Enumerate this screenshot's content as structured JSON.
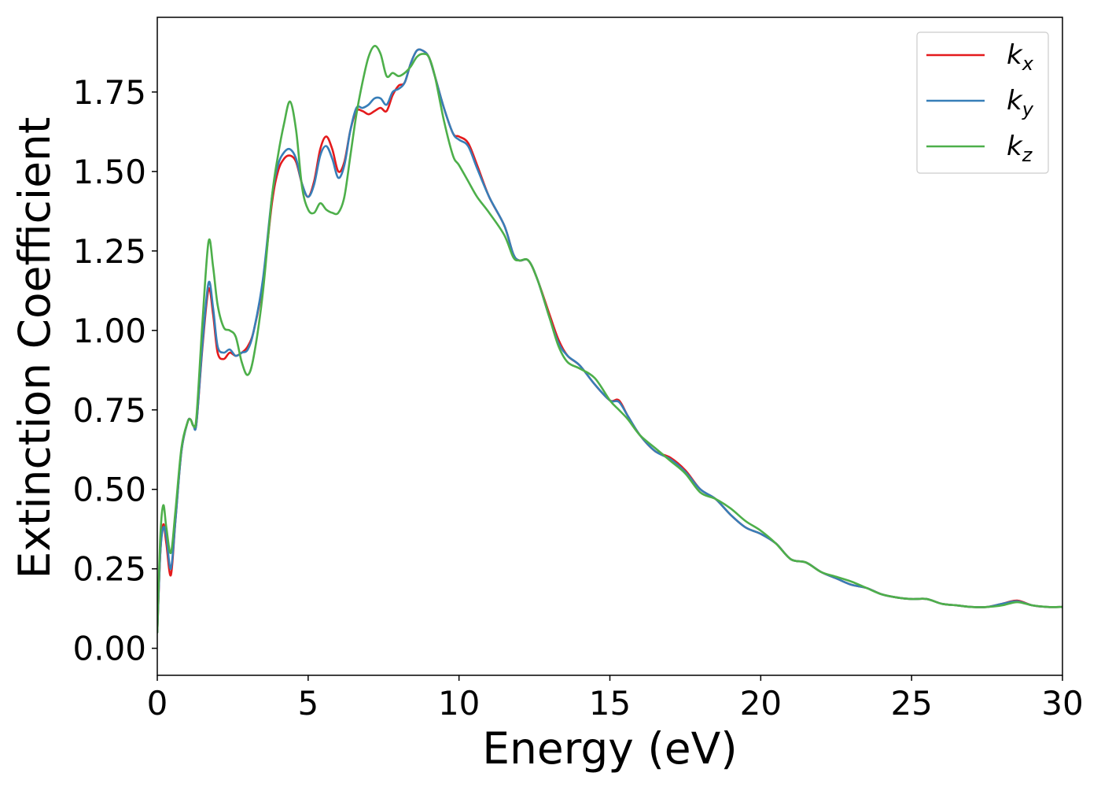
{
  "chart_data": {
    "type": "line",
    "xlabel": "Energy (eV)",
    "ylabel": "Extinction Coefficient",
    "xlim": [
      0,
      30
    ],
    "ylim": [
      -0.085,
      1.985
    ],
    "xticks": [
      0,
      5,
      10,
      15,
      20,
      25,
      30
    ],
    "xtick_labels": [
      "0",
      "5",
      "10",
      "15",
      "20",
      "25",
      "30"
    ],
    "yticks": [
      0.0,
      0.25,
      0.5,
      0.75,
      1.0,
      1.25,
      1.5,
      1.75
    ],
    "ytick_labels": [
      "0.00",
      "0.25",
      "0.50",
      "0.75",
      "1.00",
      "1.25",
      "1.50",
      "1.75"
    ],
    "grid": false,
    "legend_position": "top-right",
    "series": [
      {
        "name": "k_x",
        "label_base": "k",
        "label_sub": "x",
        "color": "#e41a1c",
        "points": [
          [
            0,
            0.05
          ],
          [
            0.1,
            0.3
          ],
          [
            0.2,
            0.39
          ],
          [
            0.3,
            0.33
          ],
          [
            0.45,
            0.23
          ],
          [
            0.6,
            0.4
          ],
          [
            0.8,
            0.62
          ],
          [
            1.0,
            0.71
          ],
          [
            1.1,
            0.72
          ],
          [
            1.2,
            0.7
          ],
          [
            1.3,
            0.71
          ],
          [
            1.5,
            0.95
          ],
          [
            1.7,
            1.13
          ],
          [
            1.85,
            1.05
          ],
          [
            2.0,
            0.93
          ],
          [
            2.2,
            0.91
          ],
          [
            2.4,
            0.93
          ],
          [
            2.6,
            0.92
          ],
          [
            2.8,
            0.93
          ],
          [
            3.0,
            0.95
          ],
          [
            3.2,
            1.0
          ],
          [
            3.5,
            1.15
          ],
          [
            3.8,
            1.4
          ],
          [
            4.0,
            1.5
          ],
          [
            4.2,
            1.54
          ],
          [
            4.4,
            1.55
          ],
          [
            4.6,
            1.53
          ],
          [
            4.8,
            1.46
          ],
          [
            5.0,
            1.42
          ],
          [
            5.2,
            1.47
          ],
          [
            5.4,
            1.57
          ],
          [
            5.6,
            1.61
          ],
          [
            5.8,
            1.57
          ],
          [
            6.0,
            1.5
          ],
          [
            6.2,
            1.53
          ],
          [
            6.4,
            1.63
          ],
          [
            6.6,
            1.69
          ],
          [
            6.8,
            1.69
          ],
          [
            7.0,
            1.68
          ],
          [
            7.2,
            1.69
          ],
          [
            7.4,
            1.7
          ],
          [
            7.6,
            1.69
          ],
          [
            7.8,
            1.74
          ],
          [
            8.0,
            1.77
          ],
          [
            8.2,
            1.78
          ],
          [
            8.4,
            1.84
          ],
          [
            8.6,
            1.88
          ],
          [
            8.8,
            1.88
          ],
          [
            9.0,
            1.86
          ],
          [
            9.2,
            1.8
          ],
          [
            9.5,
            1.7
          ],
          [
            9.8,
            1.62
          ],
          [
            10.0,
            1.61
          ],
          [
            10.3,
            1.59
          ],
          [
            10.6,
            1.52
          ],
          [
            11.0,
            1.42
          ],
          [
            11.5,
            1.33
          ],
          [
            11.8,
            1.24
          ],
          [
            12.0,
            1.22
          ],
          [
            12.3,
            1.22
          ],
          [
            12.6,
            1.16
          ],
          [
            13.0,
            1.05
          ],
          [
            13.3,
            0.97
          ],
          [
            13.6,
            0.92
          ],
          [
            14.0,
            0.89
          ],
          [
            14.5,
            0.83
          ],
          [
            15.0,
            0.78
          ],
          [
            15.3,
            0.78
          ],
          [
            15.6,
            0.73
          ],
          [
            16.0,
            0.67
          ],
          [
            16.5,
            0.62
          ],
          [
            17.0,
            0.6
          ],
          [
            17.5,
            0.56
          ],
          [
            18.0,
            0.5
          ],
          [
            18.5,
            0.47
          ],
          [
            19.0,
            0.42
          ],
          [
            19.5,
            0.38
          ],
          [
            20.0,
            0.36
          ],
          [
            20.5,
            0.33
          ],
          [
            21.0,
            0.28
          ],
          [
            21.5,
            0.27
          ],
          [
            22.0,
            0.24
          ],
          [
            22.5,
            0.22
          ],
          [
            23.0,
            0.2
          ],
          [
            23.5,
            0.19
          ],
          [
            24.0,
            0.17
          ],
          [
            24.5,
            0.16
          ],
          [
            25.0,
            0.155
          ],
          [
            25.5,
            0.155
          ],
          [
            26.0,
            0.14
          ],
          [
            26.5,
            0.135
          ],
          [
            27.0,
            0.13
          ],
          [
            27.5,
            0.13
          ],
          [
            28.0,
            0.14
          ],
          [
            28.5,
            0.15
          ],
          [
            29.0,
            0.135
          ],
          [
            29.5,
            0.13
          ],
          [
            30.0,
            0.13
          ]
        ]
      },
      {
        "name": "k_y",
        "label_base": "k",
        "label_sub": "y",
        "color": "#377eb8",
        "points": [
          [
            0,
            0.05
          ],
          [
            0.1,
            0.3
          ],
          [
            0.2,
            0.38
          ],
          [
            0.3,
            0.35
          ],
          [
            0.45,
            0.25
          ],
          [
            0.6,
            0.4
          ],
          [
            0.8,
            0.62
          ],
          [
            1.0,
            0.71
          ],
          [
            1.1,
            0.72
          ],
          [
            1.2,
            0.7
          ],
          [
            1.3,
            0.71
          ],
          [
            1.5,
            0.96
          ],
          [
            1.7,
            1.15
          ],
          [
            1.85,
            1.07
          ],
          [
            2.0,
            0.95
          ],
          [
            2.2,
            0.93
          ],
          [
            2.4,
            0.94
          ],
          [
            2.6,
            0.92
          ],
          [
            2.8,
            0.93
          ],
          [
            3.0,
            0.94
          ],
          [
            3.2,
            1.0
          ],
          [
            3.5,
            1.16
          ],
          [
            3.8,
            1.42
          ],
          [
            4.0,
            1.52
          ],
          [
            4.2,
            1.56
          ],
          [
            4.4,
            1.57
          ],
          [
            4.6,
            1.54
          ],
          [
            4.8,
            1.46
          ],
          [
            5.0,
            1.42
          ],
          [
            5.2,
            1.46
          ],
          [
            5.4,
            1.55
          ],
          [
            5.6,
            1.58
          ],
          [
            5.8,
            1.54
          ],
          [
            6.0,
            1.48
          ],
          [
            6.2,
            1.52
          ],
          [
            6.4,
            1.63
          ],
          [
            6.6,
            1.7
          ],
          [
            6.8,
            1.7
          ],
          [
            7.0,
            1.71
          ],
          [
            7.2,
            1.73
          ],
          [
            7.4,
            1.73
          ],
          [
            7.6,
            1.71
          ],
          [
            7.8,
            1.75
          ],
          [
            8.0,
            1.76
          ],
          [
            8.2,
            1.78
          ],
          [
            8.4,
            1.84
          ],
          [
            8.6,
            1.88
          ],
          [
            8.8,
            1.88
          ],
          [
            9.0,
            1.86
          ],
          [
            9.2,
            1.8
          ],
          [
            9.5,
            1.7
          ],
          [
            9.8,
            1.62
          ],
          [
            10.0,
            1.6
          ],
          [
            10.3,
            1.58
          ],
          [
            10.6,
            1.51
          ],
          [
            11.0,
            1.42
          ],
          [
            11.5,
            1.33
          ],
          [
            11.8,
            1.24
          ],
          [
            12.0,
            1.22
          ],
          [
            12.3,
            1.22
          ],
          [
            12.6,
            1.16
          ],
          [
            13.0,
            1.04
          ],
          [
            13.3,
            0.96
          ],
          [
            13.6,
            0.92
          ],
          [
            14.0,
            0.89
          ],
          [
            14.5,
            0.83
          ],
          [
            15.0,
            0.78
          ],
          [
            15.3,
            0.775
          ],
          [
            15.6,
            0.73
          ],
          [
            16.0,
            0.67
          ],
          [
            16.5,
            0.62
          ],
          [
            17.0,
            0.595
          ],
          [
            17.5,
            0.555
          ],
          [
            18.0,
            0.5
          ],
          [
            18.5,
            0.47
          ],
          [
            19.0,
            0.42
          ],
          [
            19.5,
            0.38
          ],
          [
            20.0,
            0.36
          ],
          [
            20.5,
            0.33
          ],
          [
            21.0,
            0.28
          ],
          [
            21.5,
            0.27
          ],
          [
            22.0,
            0.24
          ],
          [
            22.5,
            0.22
          ],
          [
            23.0,
            0.2
          ],
          [
            23.5,
            0.19
          ],
          [
            24.0,
            0.17
          ],
          [
            24.5,
            0.16
          ],
          [
            25.0,
            0.155
          ],
          [
            25.5,
            0.155
          ],
          [
            26.0,
            0.14
          ],
          [
            26.5,
            0.135
          ],
          [
            27.0,
            0.13
          ],
          [
            27.5,
            0.13
          ],
          [
            28.0,
            0.14
          ],
          [
            28.5,
            0.148
          ],
          [
            29.0,
            0.135
          ],
          [
            29.5,
            0.13
          ],
          [
            30.0,
            0.13
          ]
        ]
      },
      {
        "name": "k_z",
        "label_base": "k",
        "label_sub": "z",
        "color": "#4daf4a",
        "points": [
          [
            0,
            0.05
          ],
          [
            0.1,
            0.35
          ],
          [
            0.2,
            0.45
          ],
          [
            0.3,
            0.38
          ],
          [
            0.45,
            0.3
          ],
          [
            0.6,
            0.43
          ],
          [
            0.8,
            0.63
          ],
          [
            1.0,
            0.71
          ],
          [
            1.1,
            0.72
          ],
          [
            1.2,
            0.7
          ],
          [
            1.3,
            0.73
          ],
          [
            1.5,
            1.03
          ],
          [
            1.7,
            1.28
          ],
          [
            1.85,
            1.2
          ],
          [
            2.0,
            1.08
          ],
          [
            2.2,
            1.01
          ],
          [
            2.4,
            1.0
          ],
          [
            2.6,
            0.98
          ],
          [
            2.8,
            0.9
          ],
          [
            3.0,
            0.86
          ],
          [
            3.2,
            0.92
          ],
          [
            3.5,
            1.12
          ],
          [
            3.8,
            1.42
          ],
          [
            4.0,
            1.55
          ],
          [
            4.2,
            1.65
          ],
          [
            4.4,
            1.72
          ],
          [
            4.6,
            1.63
          ],
          [
            4.8,
            1.45
          ],
          [
            5.0,
            1.38
          ],
          [
            5.2,
            1.37
          ],
          [
            5.4,
            1.4
          ],
          [
            5.6,
            1.38
          ],
          [
            5.8,
            1.37
          ],
          [
            6.0,
            1.37
          ],
          [
            6.2,
            1.42
          ],
          [
            6.4,
            1.55
          ],
          [
            6.6,
            1.68
          ],
          [
            6.8,
            1.78
          ],
          [
            7.0,
            1.86
          ],
          [
            7.2,
            1.895
          ],
          [
            7.4,
            1.87
          ],
          [
            7.6,
            1.8
          ],
          [
            7.8,
            1.81
          ],
          [
            8.0,
            1.8
          ],
          [
            8.2,
            1.81
          ],
          [
            8.4,
            1.83
          ],
          [
            8.6,
            1.86
          ],
          [
            8.8,
            1.87
          ],
          [
            9.0,
            1.86
          ],
          [
            9.2,
            1.8
          ],
          [
            9.5,
            1.66
          ],
          [
            9.8,
            1.55
          ],
          [
            10.0,
            1.52
          ],
          [
            10.3,
            1.47
          ],
          [
            10.6,
            1.42
          ],
          [
            11.0,
            1.37
          ],
          [
            11.5,
            1.3
          ],
          [
            11.8,
            1.23
          ],
          [
            12.0,
            1.22
          ],
          [
            12.3,
            1.22
          ],
          [
            12.6,
            1.16
          ],
          [
            13.0,
            1.04
          ],
          [
            13.3,
            0.95
          ],
          [
            13.6,
            0.9
          ],
          [
            14.0,
            0.88
          ],
          [
            14.5,
            0.85
          ],
          [
            15.0,
            0.78
          ],
          [
            15.3,
            0.75
          ],
          [
            15.6,
            0.72
          ],
          [
            16.0,
            0.67
          ],
          [
            16.5,
            0.63
          ],
          [
            17.0,
            0.59
          ],
          [
            17.5,
            0.55
          ],
          [
            18.0,
            0.49
          ],
          [
            18.5,
            0.47
          ],
          [
            19.0,
            0.44
          ],
          [
            19.5,
            0.4
          ],
          [
            20.0,
            0.37
          ],
          [
            20.5,
            0.33
          ],
          [
            21.0,
            0.28
          ],
          [
            21.5,
            0.27
          ],
          [
            22.0,
            0.24
          ],
          [
            22.5,
            0.225
          ],
          [
            23.0,
            0.21
          ],
          [
            23.5,
            0.19
          ],
          [
            24.0,
            0.17
          ],
          [
            24.5,
            0.16
          ],
          [
            25.0,
            0.155
          ],
          [
            25.5,
            0.155
          ],
          [
            26.0,
            0.14
          ],
          [
            26.5,
            0.135
          ],
          [
            27.0,
            0.13
          ],
          [
            27.5,
            0.13
          ],
          [
            28.0,
            0.135
          ],
          [
            28.5,
            0.145
          ],
          [
            29.0,
            0.135
          ],
          [
            29.5,
            0.13
          ],
          [
            30.0,
            0.13
          ]
        ]
      }
    ]
  }
}
